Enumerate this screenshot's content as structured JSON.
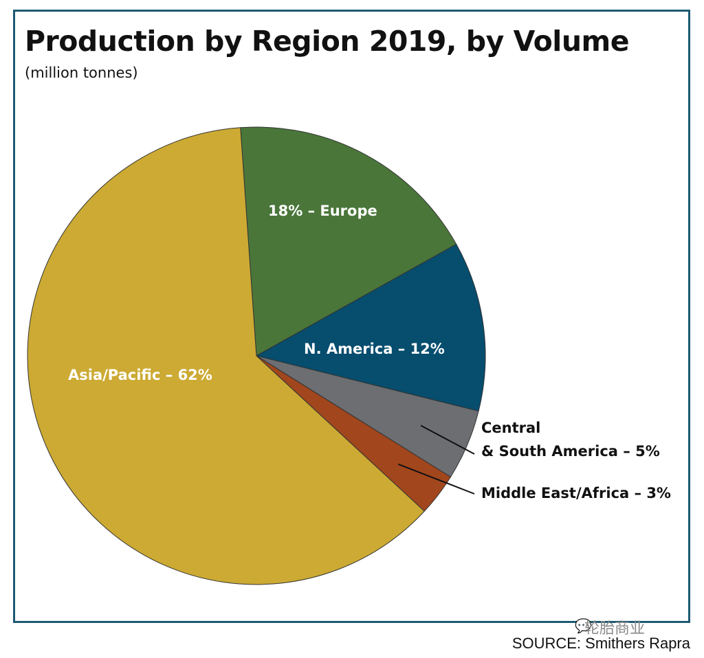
{
  "chart_data": {
    "type": "pie",
    "title": "Production by Region 2019, by Volume",
    "subtitle": "(million tonnes)",
    "slices": [
      {
        "name": "Europe",
        "value": 18,
        "label": "18% – Europe",
        "color": "#4a763a"
      },
      {
        "name": "N. America",
        "value": 12,
        "label": "N. America – 12%",
        "color": "#064d6e"
      },
      {
        "name": "Central & South America",
        "value": 5,
        "label_line1": "Central",
        "label_line2": "& South America – 5%",
        "color": "#6c6e71"
      },
      {
        "name": "Middle East/Africa",
        "value": 3,
        "label": "Middle East/Africa – 3%",
        "color": "#a2461d"
      },
      {
        "name": "Asia/Pacific",
        "value": 62,
        "label": "Asia/Pacific – 62%",
        "color": "#ccaa33"
      }
    ]
  },
  "watermark": "轮胎商业",
  "source": "SOURCE: Smithers Rapra"
}
